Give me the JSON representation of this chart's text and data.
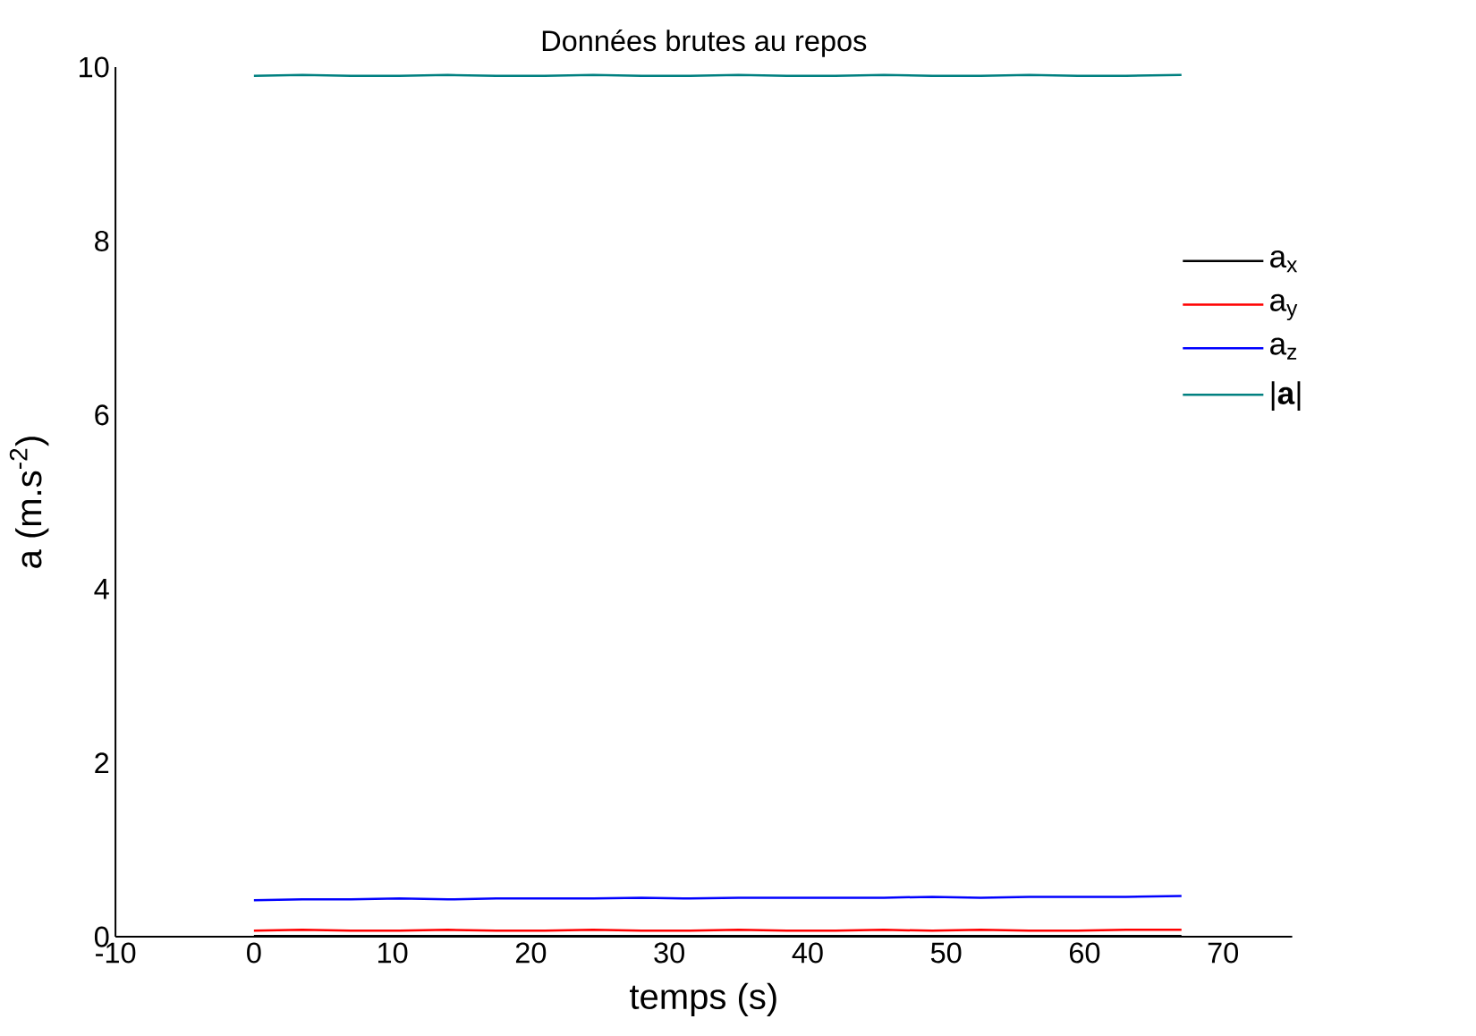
{
  "chart_data": {
    "type": "line",
    "title": "Données brutes au repos",
    "xlabel": "temps (s)",
    "ylabel": "a (m.s$^{-2}$)",
    "x": [
      0,
      3.5,
      7,
      10.5,
      14,
      17.5,
      21,
      24.5,
      28,
      31.5,
      35,
      38.5,
      42,
      45.5,
      49,
      52.5,
      56,
      59.5,
      63,
      67
    ],
    "series": [
      {
        "name": "a$_{x}$",
        "color": "#000000",
        "values": [
          0.01,
          0.01,
          0.01,
          0.01,
          0.01,
          0.01,
          0.01,
          0.01,
          0.01,
          0.01,
          0.01,
          0.01,
          0.01,
          0.01,
          0.01,
          0.01,
          0.01,
          0.01,
          0.01,
          0.01
        ]
      },
      {
        "name": "a$_{y}$",
        "color": "#ff0000",
        "values": [
          0.07,
          0.08,
          0.07,
          0.07,
          0.08,
          0.07,
          0.07,
          0.08,
          0.07,
          0.07,
          0.08,
          0.07,
          0.07,
          0.08,
          0.07,
          0.08,
          0.07,
          0.07,
          0.08,
          0.08
        ]
      },
      {
        "name": "a$_{z}$",
        "color": "#0000ff",
        "values": [
          0.42,
          0.43,
          0.43,
          0.44,
          0.43,
          0.44,
          0.44,
          0.44,
          0.45,
          0.44,
          0.45,
          0.45,
          0.45,
          0.45,
          0.46,
          0.45,
          0.46,
          0.46,
          0.46,
          0.47
        ]
      },
      {
        "name": "|**a**|",
        "color": "#008080",
        "values": [
          9.9,
          9.91,
          9.9,
          9.9,
          9.91,
          9.9,
          9.9,
          9.91,
          9.9,
          9.9,
          9.91,
          9.9,
          9.9,
          9.91,
          9.9,
          9.9,
          9.91,
          9.9,
          9.9,
          9.91
        ]
      }
    ],
    "xlim": [
      -10,
      75
    ],
    "ylim": [
      0,
      10
    ],
    "xticks": [
      -10,
      0,
      10,
      20,
      30,
      40,
      50,
      60,
      70
    ],
    "yticks": [
      0,
      2,
      4,
      6,
      8,
      10
    ],
    "grid": false,
    "legend": "right",
    "marker": "none",
    "line_style": "solid"
  }
}
